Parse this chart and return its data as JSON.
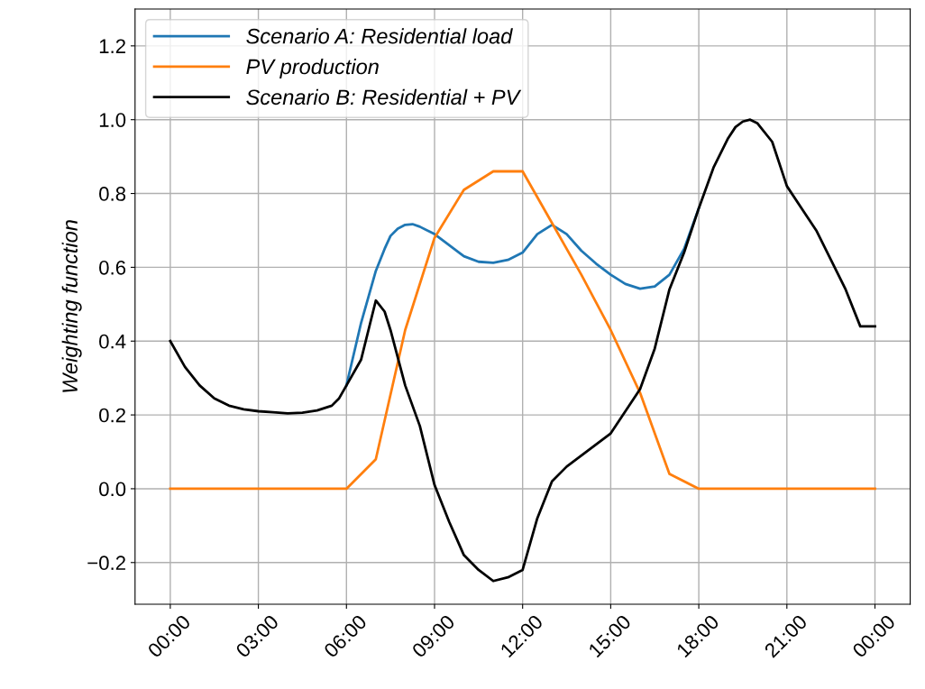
{
  "chart_data": {
    "type": "line",
    "ylabel": "Weighting function",
    "xlim": [
      -1.2,
      25.2
    ],
    "ylim": [
      -0.313,
      1.3
    ],
    "xticks": [
      {
        "value": 0,
        "label": "00:00"
      },
      {
        "value": 3,
        "label": "03:00"
      },
      {
        "value": 6,
        "label": "06:00"
      },
      {
        "value": 9,
        "label": "09:00"
      },
      {
        "value": 12,
        "label": "12:00"
      },
      {
        "value": 15,
        "label": "15:00"
      },
      {
        "value": 18,
        "label": "18:00"
      },
      {
        "value": 21,
        "label": "21:00"
      },
      {
        "value": 24,
        "label": "00:00"
      }
    ],
    "yticks": [
      {
        "value": -0.2,
        "label": "−0.2"
      },
      {
        "value": 0,
        "label": "0.0"
      },
      {
        "value": 0.2,
        "label": "0.2"
      },
      {
        "value": 0.4,
        "label": "0.4"
      },
      {
        "value": 0.6,
        "label": "0.6"
      },
      {
        "value": 0.8,
        "label": "0.8"
      },
      {
        "value": 1.0,
        "label": "1.0"
      },
      {
        "value": 1.2,
        "label": "1.2"
      }
    ],
    "grid": true,
    "legend": "top left",
    "series": [
      {
        "name": "Scenario A: Residential load",
        "color": "#1f77b4",
        "x": [
          6,
          6.5,
          7,
          7.3,
          7.5,
          7.75,
          8,
          8.25,
          8.5,
          9,
          9.5,
          10,
          10.5,
          11,
          11.5,
          12,
          12.5,
          13,
          13.5,
          14,
          14.5,
          15,
          15.5,
          16,
          16.5,
          17,
          17.5,
          18
        ],
        "values": [
          0.28,
          0.45,
          0.59,
          0.65,
          0.685,
          0.705,
          0.715,
          0.717,
          0.71,
          0.69,
          0.66,
          0.63,
          0.615,
          0.612,
          0.62,
          0.64,
          0.69,
          0.715,
          0.69,
          0.645,
          0.61,
          0.58,
          0.555,
          0.542,
          0.548,
          0.58,
          0.65,
          0.76
        ]
      },
      {
        "name": "PV production",
        "color": "#ff7f0e",
        "x": [
          0,
          1,
          2,
          3,
          4,
          5,
          6,
          7,
          8,
          9,
          10,
          11,
          12,
          13,
          14,
          15,
          16,
          17,
          18,
          19,
          20,
          21,
          22,
          23,
          24
        ],
        "values": [
          0,
          0,
          0,
          0,
          0,
          0,
          0,
          0.08,
          0.43,
          0.68,
          0.81,
          0.86,
          0.86,
          0.72,
          0.58,
          0.43,
          0.26,
          0.04,
          0,
          0,
          0,
          0,
          0,
          0,
          0
        ]
      },
      {
        "name": "Scenario B: Residential + PV",
        "color": "#000000",
        "x": [
          0,
          0.5,
          1,
          1.5,
          2,
          2.5,
          3,
          3.5,
          4,
          4.5,
          5,
          5.5,
          5.75,
          6,
          6.5,
          7,
          7.3,
          7.5,
          8,
          8.5,
          9,
          9.5,
          10,
          10.5,
          11,
          11.5,
          12,
          12.5,
          13,
          13.5,
          14,
          14.5,
          15,
          15.5,
          16,
          16.5,
          17,
          17.5,
          18,
          18.5,
          19,
          19.25,
          19.5,
          19.75,
          20,
          20.5,
          21,
          21.5,
          22,
          22.5,
          23,
          23.5,
          24
        ],
        "values": [
          0.4,
          0.33,
          0.28,
          0.245,
          0.225,
          0.215,
          0.21,
          0.207,
          0.204,
          0.206,
          0.212,
          0.225,
          0.245,
          0.28,
          0.35,
          0.51,
          0.48,
          0.43,
          0.28,
          0.17,
          0.01,
          -0.09,
          -0.18,
          -0.22,
          -0.25,
          -0.24,
          -0.22,
          -0.08,
          0.02,
          0.06,
          0.09,
          0.12,
          0.15,
          0.21,
          0.27,
          0.38,
          0.54,
          0.64,
          0.76,
          0.87,
          0.95,
          0.98,
          0.995,
          1.0,
          0.99,
          0.94,
          0.82,
          0.76,
          0.7,
          0.62,
          0.54,
          0.44,
          0.44
        ]
      }
    ]
  }
}
